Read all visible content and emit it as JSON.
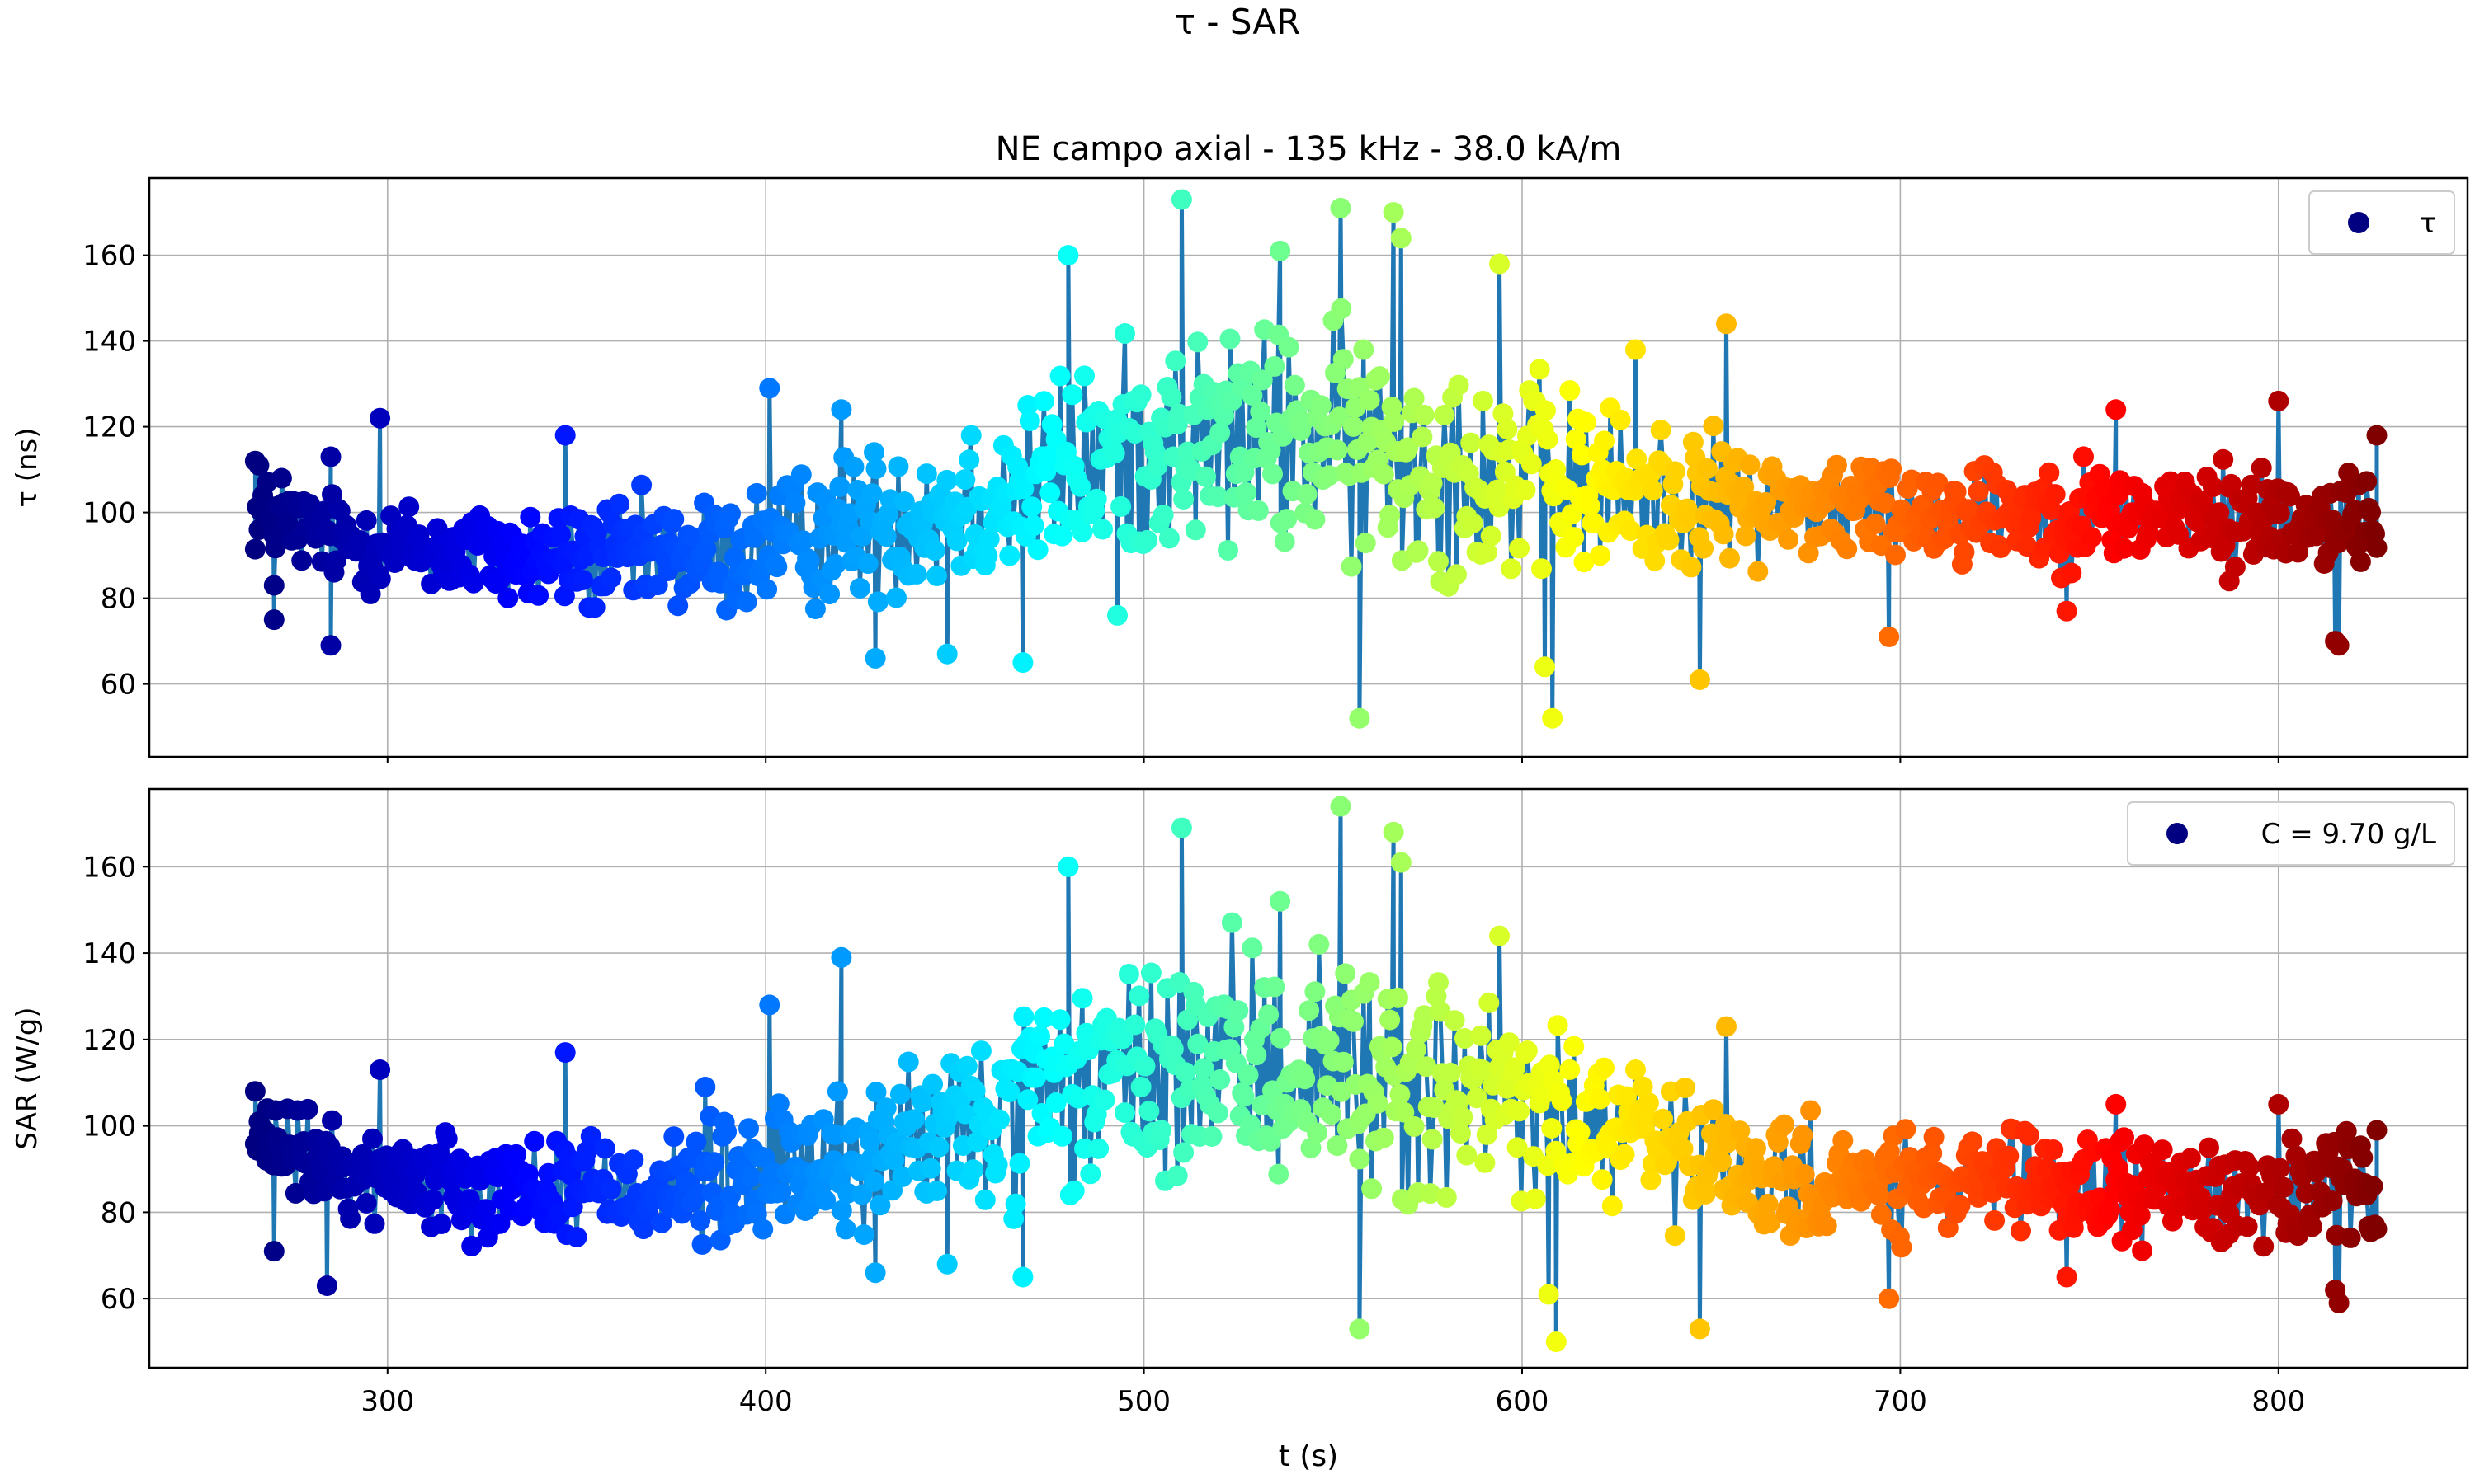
{
  "figure": {
    "suptitle": "τ - SAR",
    "xlabel": "t (s)",
    "xlim": [
      237,
      850
    ],
    "xticks": [
      300,
      400,
      500,
      600,
      700,
      800
    ]
  },
  "chart_data": [
    {
      "type": "scatter",
      "title": "NE campo axial - 135 kHz - 38.0 kA/m",
      "xlabel": "",
      "ylabel": "τ (ns)",
      "ylim": [
        43,
        178
      ],
      "yticks": [
        60,
        80,
        100,
        120,
        140,
        160
      ],
      "grid": true,
      "legend": {
        "placement": "top-right",
        "label": "τ"
      },
      "line_color": "#1f77b4",
      "marker_colormap": "jet",
      "t_range": [
        265,
        826
      ],
      "n_points": 1050,
      "profile": [
        [
          265,
          100
        ],
        [
          290,
          93
        ],
        [
          340,
          89
        ],
        [
          390,
          90
        ],
        [
          430,
          98
        ],
        [
          470,
          106
        ],
        [
          500,
          116
        ],
        [
          550,
          117
        ],
        [
          600,
          108
        ],
        [
          630,
          104
        ],
        [
          660,
          102
        ],
        [
          700,
          101
        ],
        [
          800,
          99
        ],
        [
          826,
          98
        ]
      ],
      "spread": [
        [
          265,
          9
        ],
        [
          300,
          10
        ],
        [
          400,
          14
        ],
        [
          480,
          22
        ],
        [
          560,
          26
        ],
        [
          620,
          20
        ],
        [
          660,
          12
        ],
        [
          826,
          11
        ]
      ],
      "series": [
        {
          "name": "τ",
          "points": [
            [
              265,
              112
            ],
            [
              266,
              111
            ],
            [
              266,
              96
            ],
            [
              267,
              104
            ],
            [
              270,
              75
            ],
            [
              270,
              83
            ],
            [
              272,
              108
            ],
            [
              285,
              113
            ],
            [
              285,
              69
            ],
            [
              298,
              122
            ],
            [
              347,
              118
            ],
            [
              401,
              129
            ],
            [
              420,
              124
            ],
            [
              429,
              66
            ],
            [
              448,
              67
            ],
            [
              468,
              65
            ],
            [
              480,
              160
            ],
            [
              493,
              76
            ],
            [
              510,
              173
            ],
            [
              536,
              161
            ],
            [
              552,
              171
            ],
            [
              557,
              52
            ],
            [
              566,
              170
            ],
            [
              568,
              164
            ],
            [
              594,
              158
            ],
            [
              606,
              64
            ],
            [
              608,
              52
            ],
            [
              630,
              138
            ],
            [
              647,
              61
            ],
            [
              654,
              144
            ],
            [
              697,
              71
            ],
            [
              744,
              77
            ],
            [
              757,
              124
            ],
            [
              787,
              84
            ],
            [
              800,
              126
            ],
            [
              815,
              70
            ],
            [
              816,
              69
            ],
            [
              826,
              118
            ]
          ]
        }
      ]
    },
    {
      "type": "scatter",
      "title": "",
      "xlabel": "t (s)",
      "ylabel": "SAR (W/g)",
      "ylim": [
        44,
        178
      ],
      "yticks": [
        60,
        80,
        100,
        120,
        140,
        160
      ],
      "grid": true,
      "legend": {
        "placement": "top-right",
        "label": "C = 9.70 g/L"
      },
      "line_color": "#1f77b4",
      "marker_colormap": "jet",
      "t_range": [
        265,
        826
      ],
      "n_points": 1050,
      "profile": [
        [
          265,
          97
        ],
        [
          290,
          89
        ],
        [
          340,
          86
        ],
        [
          390,
          86
        ],
        [
          430,
          94
        ],
        [
          470,
          104
        ],
        [
          500,
          112
        ],
        [
          550,
          114
        ],
        [
          600,
          104
        ],
        [
          630,
          97
        ],
        [
          660,
          87
        ],
        [
          700,
          86
        ],
        [
          800,
          85
        ],
        [
          826,
          84
        ]
      ],
      "spread": [
        [
          265,
          9
        ],
        [
          300,
          10
        ],
        [
          400,
          14
        ],
        [
          480,
          22
        ],
        [
          560,
          26
        ],
        [
          620,
          20
        ],
        [
          660,
          12
        ],
        [
          826,
          11
        ]
      ],
      "series": [
        {
          "name": "C = 9.70 g/L",
          "points": [
            [
              265,
              108
            ],
            [
              266,
              101
            ],
            [
              268,
              92
            ],
            [
              270,
              71
            ],
            [
              284,
              63
            ],
            [
              298,
              113
            ],
            [
              347,
              117
            ],
            [
              384,
              109
            ],
            [
              401,
              128
            ],
            [
              420,
              139
            ],
            [
              429,
              66
            ],
            [
              448,
              68
            ],
            [
              468,
              65
            ],
            [
              480,
              160
            ],
            [
              510,
              169
            ],
            [
              536,
              152
            ],
            [
              552,
              174
            ],
            [
              557,
              53
            ],
            [
              566,
              168
            ],
            [
              568,
              161
            ],
            [
              594,
              144
            ],
            [
              607,
              61
            ],
            [
              609,
              50
            ],
            [
              630,
              113
            ],
            [
              647,
              53
            ],
            [
              654,
              123
            ],
            [
              697,
              60
            ],
            [
              744,
              65
            ],
            [
              757,
              105
            ],
            [
              787,
              75
            ],
            [
              800,
              105
            ],
            [
              815,
              62
            ],
            [
              816,
              59
            ],
            [
              826,
              99
            ]
          ]
        }
      ]
    }
  ]
}
